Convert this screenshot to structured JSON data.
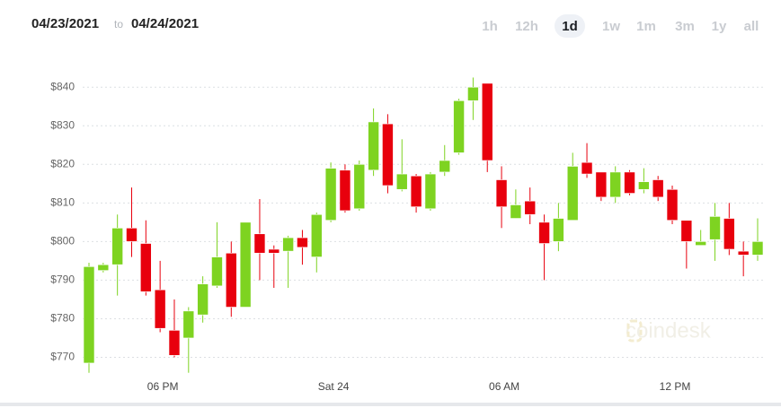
{
  "header": {
    "from": "04/23/2021",
    "to_word": "to",
    "to": "04/24/2021",
    "ranges": [
      "1h",
      "12h",
      "1d",
      "1w",
      "1m",
      "3m",
      "1y",
      "all"
    ],
    "active_range": "1d"
  },
  "watermark": "coindesk",
  "chart_data": {
    "type": "candlestick",
    "categories": [
      null,
      null,
      null,
      null,
      null,
      "06 PM",
      null,
      null,
      null,
      null,
      null,
      null,
      null,
      null,
      null,
      null,
      null,
      "Sat 24",
      null,
      null,
      null,
      null,
      null,
      null,
      null,
      null,
      null,
      null,
      null,
      "06 AM",
      null,
      null,
      null,
      null,
      null,
      null,
      null,
      null,
      null,
      null,
      null,
      "12 PM",
      null,
      null,
      null,
      null,
      null,
      null
    ],
    "open": [
      768.5,
      792.5,
      794,
      803.5,
      799.5,
      787.5,
      777,
      775,
      781,
      788.5,
      797,
      783,
      802,
      798,
      797.5,
      801,
      796,
      805.5,
      818.5,
      808.5,
      818.5,
      830.5,
      813.5,
      817,
      808.5,
      818,
      823,
      836.5,
      841,
      816,
      806,
      810.5,
      805,
      800,
      805.5,
      820.5,
      818,
      811.5,
      818,
      813.5,
      816,
      813.5,
      805.5,
      799,
      800.5,
      806,
      797.5,
      796.5
    ],
    "high": [
      794.5,
      794.5,
      807,
      814,
      805.5,
      795,
      785,
      783,
      791,
      805,
      800,
      805,
      811,
      799,
      801.5,
      803,
      807.5,
      820.5,
      820,
      821,
      834.5,
      833,
      826.5,
      817.5,
      818,
      825,
      837,
      842.5,
      841,
      819.5,
      813.5,
      814,
      807,
      810,
      823,
      825.5,
      818,
      819.5,
      818.5,
      819,
      817,
      814.5,
      805.5,
      803,
      810,
      810,
      800,
      806
    ],
    "low": [
      766,
      792,
      786,
      796,
      786,
      776.5,
      770,
      766,
      779,
      788,
      780.5,
      783,
      790,
      788,
      788,
      794,
      792,
      805,
      807.5,
      808,
      817,
      812.5,
      813,
      807.5,
      808,
      817,
      822.5,
      831.5,
      818,
      803.5,
      806,
      804.5,
      790,
      797.5,
      805.5,
      816.5,
      810.5,
      810,
      812,
      812.5,
      810.5,
      804.5,
      793,
      799,
      795,
      796.5,
      791,
      795
    ],
    "close": [
      793.5,
      794,
      803.5,
      800,
      787,
      777.5,
      770.5,
      782,
      789,
      796,
      783,
      805,
      797,
      797,
      801,
      798.5,
      807,
      819,
      808,
      820,
      831,
      814.5,
      817.5,
      809,
      817.5,
      821,
      836.5,
      840,
      821,
      809,
      809.5,
      807,
      799.5,
      806,
      819.5,
      817.5,
      811.5,
      818,
      812.5,
      815.5,
      811.5,
      805.5,
      800,
      800,
      806.5,
      798,
      796.5,
      800
    ],
    "up_color": "#7ed321",
    "down_color": "#e8000d",
    "ylim": [
      765,
      844
    ],
    "yticks": [
      {
        "value": 770,
        "label": "$770"
      },
      {
        "value": 780,
        "label": "$780"
      },
      {
        "value": 790,
        "label": "$790"
      },
      {
        "value": 800,
        "label": "$800"
      },
      {
        "value": 810,
        "label": "$810"
      },
      {
        "value": 820,
        "label": "$820"
      },
      {
        "value": 830,
        "label": "$830"
      },
      {
        "value": 840,
        "label": "$840"
      }
    ],
    "grid": true
  }
}
